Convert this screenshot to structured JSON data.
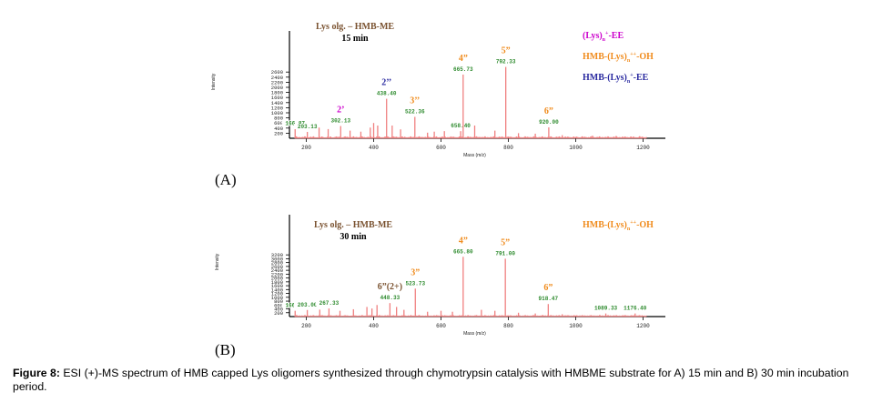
{
  "figure": {
    "caption_label": "Figure 8:",
    "caption_text": " ESI (+)-MS spectrum of HMB capped Lys oligomers synthesized through chymotrypsin catalysis with HMBME substrate for A) 15 min and B) 30 min incubation period."
  },
  "colors": {
    "spectrum": "#f08080",
    "peak_label_box": "#2e8b2e",
    "title": "#7a5230",
    "lys_ee": "#cc00cc",
    "hmb_oh": "#f08c1e",
    "hmb_ee": "#2a2aa0"
  },
  "chart_data": [
    {
      "type": "line",
      "panel_label": "(A)",
      "title_line1": "Lys olg. – HMB-ME",
      "title_line2": "15 min",
      "xlim": [
        150,
        1250
      ],
      "ylim": [
        0,
        4000
      ],
      "xticks": [
        200,
        400,
        600,
        800,
        1000,
        1200
      ],
      "yticks": [
        200,
        400,
        600,
        800,
        1000,
        1200,
        1400,
        1600,
        1800,
        2000,
        2200,
        2400,
        2600
      ],
      "ylabel": "Intensity",
      "xlabel": "Mass (m/z)",
      "legend": [
        {
          "prefix": "(Lys)",
          "sub": "n",
          "sup": "+",
          "suffix": "-EE",
          "color": "#cc00cc"
        },
        {
          "prefix": "HMB-(Lys)",
          "sub": "n",
          "sup": "++",
          "suffix": "-OH",
          "color": "#f08c1e"
        },
        {
          "prefix": "HMB-(Lys)",
          "sub": "n",
          "sup": "+",
          "suffix": "-EE",
          "color": "#2a2aa0"
        }
      ],
      "peaks": [
        {
          "mz": 166.87,
          "intensity": 380,
          "label": "166.87"
        },
        {
          "mz": 203.13,
          "intensity": 250,
          "label": "203.13"
        },
        {
          "mz": 238,
          "intensity": 420
        },
        {
          "mz": 265,
          "intensity": 360
        },
        {
          "mz": 302.13,
          "intensity": 480,
          "label": "302.13"
        },
        {
          "mz": 330,
          "intensity": 300
        },
        {
          "mz": 362,
          "intensity": 260
        },
        {
          "mz": 390,
          "intensity": 420
        },
        {
          "mz": 400,
          "intensity": 600
        },
        {
          "mz": 412,
          "intensity": 500
        },
        {
          "mz": 438.4,
          "intensity": 1550,
          "label": "438.40"
        },
        {
          "mz": 455,
          "intensity": 500
        },
        {
          "mz": 480,
          "intensity": 350
        },
        {
          "mz": 522.36,
          "intensity": 840,
          "label": "522.36"
        },
        {
          "mz": 560,
          "intensity": 220
        },
        {
          "mz": 580,
          "intensity": 260
        },
        {
          "mz": 610,
          "intensity": 280
        },
        {
          "mz": 658.4,
          "intensity": 280,
          "label": "658.40"
        },
        {
          "mz": 700,
          "intensity": 500
        },
        {
          "mz": 665.73,
          "intensity": 2500,
          "label": "665.73"
        },
        {
          "mz": 760,
          "intensity": 300
        },
        {
          "mz": 792.33,
          "intensity": 2800,
          "label": "792.33"
        },
        {
          "mz": 830,
          "intensity": 200
        },
        {
          "mz": 880,
          "intensity": 180
        },
        {
          "mz": 920.0,
          "intensity": 430,
          "label": "920.00"
        },
        {
          "mz": 960,
          "intensity": 120
        },
        {
          "mz": 1050,
          "intensity": 100
        },
        {
          "mz": 1120,
          "intensity": 90
        },
        {
          "mz": 1190,
          "intensity": 80
        }
      ],
      "annotations": [
        {
          "text": "2’",
          "mz": 302.13,
          "color": "#cc00cc"
        },
        {
          "text": "2’’",
          "mz": 438.4,
          "color": "#2a2aa0"
        },
        {
          "text": "3’’",
          "mz": 522.36,
          "color": "#f08c1e"
        },
        {
          "text": "4”",
          "mz": 665.73,
          "color": "#f08c1e"
        },
        {
          "text": "5”",
          "mz": 792.33,
          "color": "#f08c1e"
        },
        {
          "text": "6”",
          "mz": 920.0,
          "color": "#f08c1e"
        }
      ]
    },
    {
      "type": "line",
      "panel_label": "(B)",
      "title_line1": "Lys olg. – HMB-ME",
      "title_line2": "30 min",
      "xlim": [
        150,
        1250
      ],
      "ylim": [
        0,
        5000
      ],
      "xticks": [
        200,
        400,
        600,
        800,
        1000,
        1200
      ],
      "yticks": [
        200,
        400,
        600,
        800,
        1000,
        1200,
        1400,
        1600,
        1800,
        2000,
        2200,
        2400,
        2600,
        2800,
        3000,
        3200
      ],
      "ylabel": "Intensity",
      "xlabel": "Mass (m/z)",
      "legend": [
        {
          "prefix": "HMB-(Lys)",
          "sub": "n",
          "sup": "++",
          "suffix": "-OH",
          "color": "#f08c1e"
        }
      ],
      "peaks": [
        {
          "mz": 166.9,
          "intensity": 300,
          "label": "166.90"
        },
        {
          "mz": 203.0,
          "intensity": 340,
          "label": "203.00"
        },
        {
          "mz": 240,
          "intensity": 360
        },
        {
          "mz": 267.33,
          "intensity": 420,
          "label": "267.33"
        },
        {
          "mz": 300,
          "intensity": 300
        },
        {
          "mz": 340,
          "intensity": 380
        },
        {
          "mz": 380,
          "intensity": 500
        },
        {
          "mz": 395,
          "intensity": 420
        },
        {
          "mz": 410,
          "intensity": 600
        },
        {
          "mz": 448.33,
          "intensity": 700,
          "label": "448.33"
        },
        {
          "mz": 468,
          "intensity": 500
        },
        {
          "mz": 490,
          "intensity": 350
        },
        {
          "mz": 523.73,
          "intensity": 1450,
          "label": "523.73"
        },
        {
          "mz": 560,
          "intensity": 250
        },
        {
          "mz": 600,
          "intensity": 300
        },
        {
          "mz": 634,
          "intensity": 250
        },
        {
          "mz": 665.8,
          "intensity": 3100,
          "label": "665.80"
        },
        {
          "mz": 720,
          "intensity": 350
        },
        {
          "mz": 760,
          "intensity": 300
        },
        {
          "mz": 791.0,
          "intensity": 3000,
          "label": "791.00"
        },
        {
          "mz": 830,
          "intensity": 200
        },
        {
          "mz": 880,
          "intensity": 160
        },
        {
          "mz": 918.47,
          "intensity": 650,
          "label": "918.47"
        },
        {
          "mz": 960,
          "intensity": 120
        },
        {
          "mz": 1089.33,
          "intensity": 160,
          "label": "1089.33"
        },
        {
          "mz": 1176.4,
          "intensity": 160,
          "label": "1176.40"
        }
      ],
      "annotations": [
        {
          "text": "6”(2+)",
          "mz": 448.33,
          "color": "#7a5230"
        },
        {
          "text": "3”",
          "mz": 523.73,
          "color": "#f08c1e"
        },
        {
          "text": "4”",
          "mz": 665.8,
          "color": "#f08c1e"
        },
        {
          "text": "5”",
          "mz": 791.0,
          "color": "#f08c1e"
        },
        {
          "text": "6”",
          "mz": 918.47,
          "color": "#f08c1e"
        }
      ]
    }
  ]
}
